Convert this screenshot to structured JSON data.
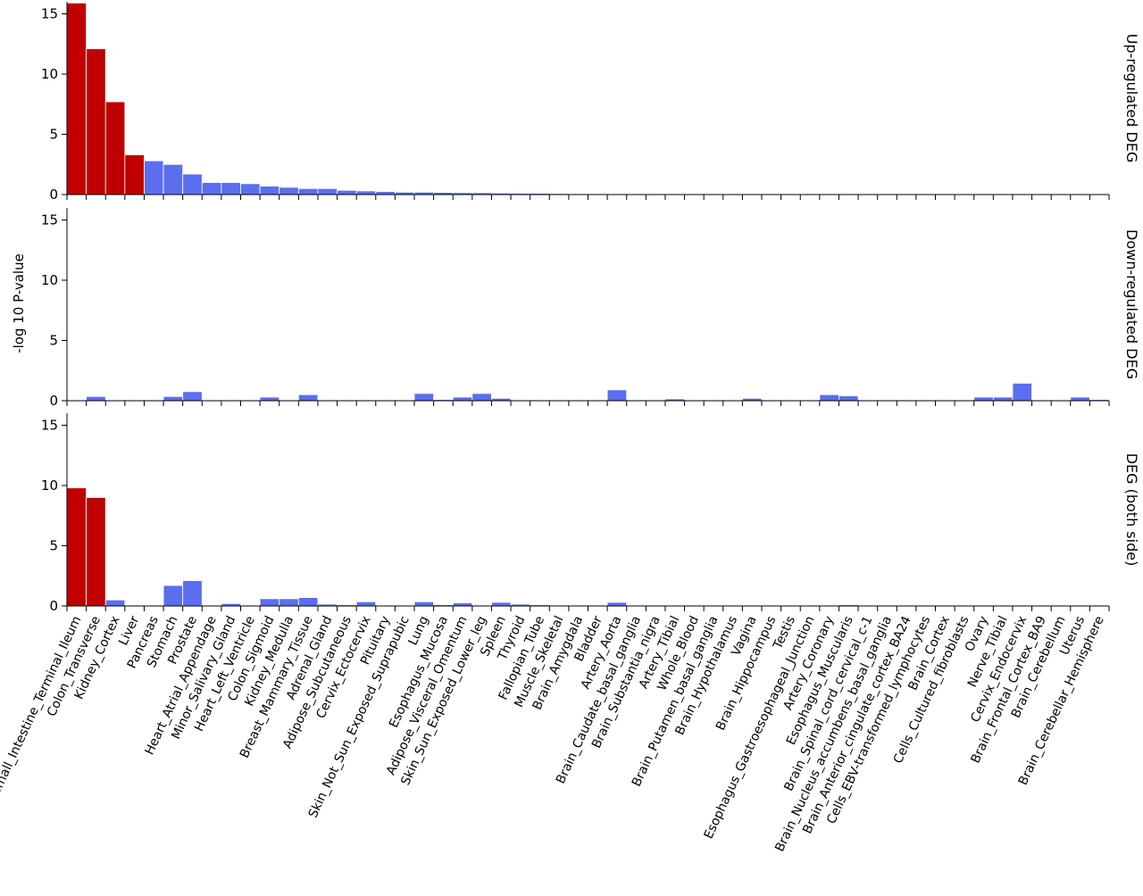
{
  "chart_data": {
    "type": "bar",
    "ylabel": "-log 10 P-value",
    "ylim": [
      0,
      16
    ],
    "yticks": [
      0,
      5,
      10,
      15
    ],
    "colors": {
      "significant": "#c00000",
      "not_significant": "#5b6ef0"
    },
    "categories": [
      "Small_Intestine_Terminal_Ileum",
      "Colon_Transverse",
      "Kidney_Cortex",
      "Liver",
      "Pancreas",
      "Stomach",
      "Prostate",
      "Heart_Atrial_Appendage",
      "Minor_Salivary_Gland",
      "Heart_Left_Ventricle",
      "Colon_Sigmoid",
      "Kidney_Medulla",
      "Breast_Mammary_Tissue",
      "Adrenal_Gland",
      "Adipose_Subcutaneous",
      "Cervix_Ectocervix",
      "Pituitary",
      "Skin_Not_Sun_Exposed_Suprapubic",
      "Lung",
      "Esophagus_Mucosa",
      "Adipose_Visceral_Omentum",
      "Skin_Sun_Exposed_Lower_leg",
      "Spleen",
      "Thyroid",
      "Fallopian_Tube",
      "Muscle_Skeletal",
      "Brain_Amygdala",
      "Bladder",
      "Artery_Aorta",
      "Brain_Caudate_basal_ganglia",
      "Brain_Substantia_nigra",
      "Artery_Tibial",
      "Whole_Blood",
      "Brain_Putamen_basal_ganglia",
      "Brain_Hypothalamus",
      "Vagina",
      "Brain_Hippocampus",
      "Testis",
      "Esophagus_Gastroesophageal_Junction",
      "Artery_Coronary",
      "Esophagus_Muscularis",
      "Brain_Spinal_cord_cervical_c-1",
      "Brain_Nucleus_accumbens_basal_ganglia",
      "Brain_Anterior_cingulate_cortex_BA24",
      "Cells_EBV-transformed_lymphocytes",
      "Brain_Cortex",
      "Cells_Cultured_fibroblasts",
      "Ovary",
      "Nerve_Tibial",
      "Cervix_Endocervix",
      "Brain_Frontal_Cortex_BA9",
      "Brain_Cerebellum",
      "Uterus",
      "Brain_Cerebellar_Hemisphere"
    ],
    "panels": [
      {
        "label": "Up-regulated DEG",
        "values": [
          15.9,
          12.1,
          7.7,
          3.3,
          2.8,
          2.5,
          1.7,
          1.0,
          1.0,
          0.9,
          0.7,
          0.6,
          0.5,
          0.5,
          0.35,
          0.3,
          0.25,
          0.2,
          0.2,
          0.18,
          0.16,
          0.15,
          0.12,
          0.1,
          0.1,
          0.08,
          0.06,
          0,
          0,
          0,
          0,
          0,
          0,
          0,
          0,
          0,
          0,
          0,
          0,
          0,
          0,
          0,
          0,
          0,
          0,
          0,
          0,
          0,
          0,
          0,
          0,
          0,
          0,
          0
        ],
        "significant": [
          true,
          true,
          true,
          true,
          false,
          false,
          false,
          false,
          false,
          false,
          false,
          false,
          false,
          false,
          false,
          false,
          false,
          false,
          false,
          false,
          false,
          false,
          false,
          false,
          false,
          false,
          false,
          false,
          false,
          false,
          false,
          false,
          false,
          false,
          false,
          false,
          false,
          false,
          false,
          false,
          false,
          false,
          false,
          false,
          false,
          false,
          false,
          false,
          false,
          false,
          false,
          false,
          false,
          false
        ]
      },
      {
        "label": "Down-regulated DEG",
        "values": [
          0,
          0.35,
          0,
          0,
          0,
          0.35,
          0.75,
          0,
          0,
          0,
          0.3,
          0,
          0.5,
          0.05,
          0,
          0,
          0,
          0,
          0.6,
          0.1,
          0.3,
          0.6,
          0.2,
          0,
          0,
          0,
          0,
          0,
          0.9,
          0,
          0,
          0.15,
          0,
          0,
          0,
          0.2,
          0,
          0.05,
          0.05,
          0.5,
          0.4,
          0,
          0,
          0,
          0,
          0,
          0,
          0.3,
          0.3,
          1.45,
          0,
          0.05,
          0.3,
          0.1
        ],
        "significant": [
          false,
          false,
          false,
          false,
          false,
          false,
          false,
          false,
          false,
          false,
          false,
          false,
          false,
          false,
          false,
          false,
          false,
          false,
          false,
          false,
          false,
          false,
          false,
          false,
          false,
          false,
          false,
          false,
          false,
          false,
          false,
          false,
          false,
          false,
          false,
          false,
          false,
          false,
          false,
          false,
          false,
          false,
          false,
          false,
          false,
          false,
          false,
          false,
          false,
          false,
          false,
          false,
          false,
          false
        ]
      },
      {
        "label": "DEG (both side)",
        "values": [
          9.8,
          9.0,
          0.5,
          0,
          0,
          1.7,
          2.1,
          0,
          0.2,
          0,
          0.6,
          0.6,
          0.7,
          0.15,
          0.1,
          0.35,
          0,
          0,
          0.35,
          0.1,
          0.25,
          0,
          0.3,
          0.15,
          0.1,
          0,
          0,
          0,
          0.3,
          0,
          0,
          0,
          0,
          0,
          0,
          0,
          0,
          0,
          0,
          0.05,
          0.1,
          0,
          0,
          0,
          0,
          0,
          0,
          0,
          0.05,
          0,
          0,
          0,
          0,
          0
        ],
        "significant": [
          true,
          true,
          false,
          false,
          false,
          false,
          false,
          false,
          false,
          false,
          false,
          false,
          false,
          false,
          false,
          false,
          false,
          false,
          false,
          false,
          false,
          false,
          false,
          false,
          false,
          false,
          false,
          false,
          false,
          false,
          false,
          false,
          false,
          false,
          false,
          false,
          false,
          false,
          false,
          false,
          false,
          false,
          false,
          false,
          false,
          false,
          false,
          false,
          false,
          false,
          false,
          false,
          false,
          false
        ]
      }
    ]
  }
}
